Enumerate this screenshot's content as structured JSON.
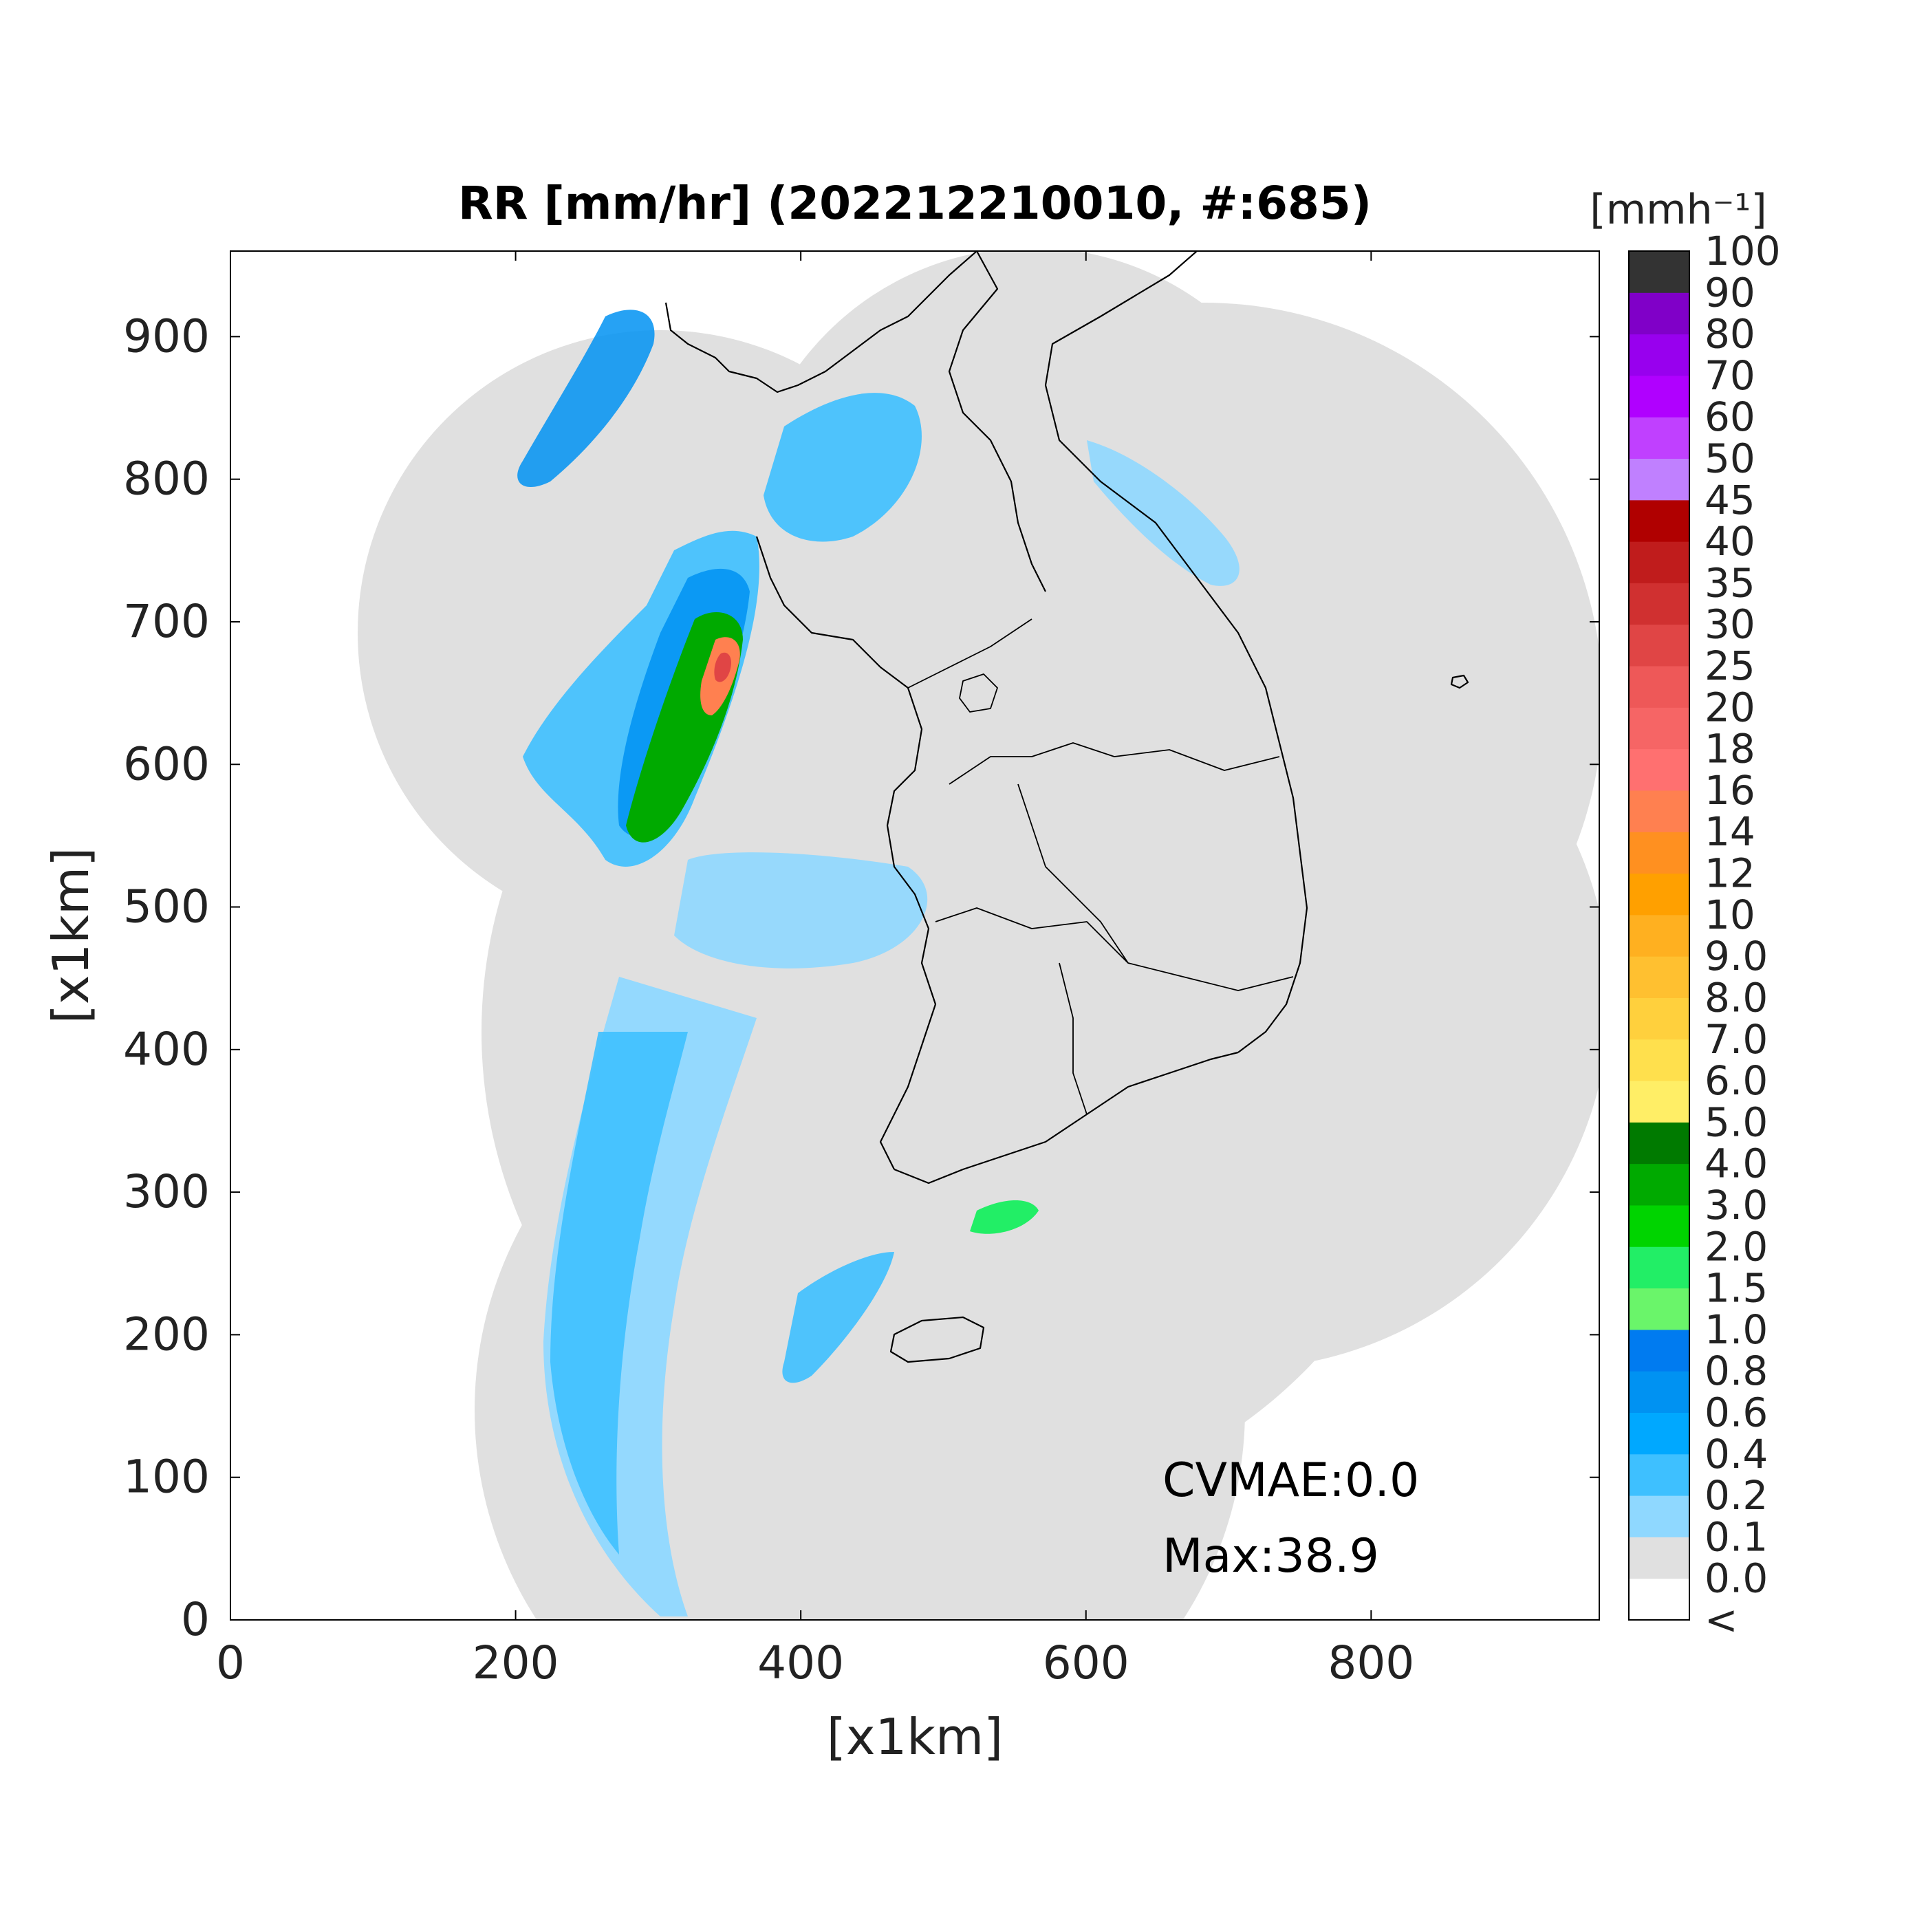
{
  "title": "RR [mm/hr] (202212210010, #:685)",
  "x_axis": {
    "label": "[x1km]",
    "min": 0,
    "max": 960,
    "ticks": [
      0,
      200,
      400,
      600,
      800
    ]
  },
  "y_axis": {
    "label": "[x1km]",
    "min": 0,
    "max": 960,
    "ticks": [
      0,
      100,
      200,
      300,
      400,
      500,
      600,
      700,
      800,
      900
    ]
  },
  "annotations": {
    "cvmae": "CVMAE:0.0",
    "max": "Max:38.9"
  },
  "colorbar": {
    "unit": "[mmh⁻¹]",
    "labels": [
      "<",
      "0.0",
      "0.1",
      "0.2",
      "0.4",
      "0.6",
      "0.8",
      "1.0",
      "1.5",
      "2.0",
      "3.0",
      "4.0",
      "5.0",
      "6.0",
      "7.0",
      "8.0",
      "9.0",
      "10",
      "12",
      "14",
      "16",
      "18",
      "20",
      "25",
      "30",
      "35",
      "40",
      "45",
      "50",
      "60",
      "70",
      "80",
      "90",
      "100"
    ],
    "colors": [
      "#ffffff",
      "#e0e0e0",
      "#8fd8ff",
      "#3ec0ff",
      "#00a8ff",
      "#0092f2",
      "#007bf0",
      "#6af56a",
      "#22ee66",
      "#00d400",
      "#00aa00",
      "#007a00",
      "#ffee66",
      "#ffe04d",
      "#ffd03d",
      "#ffc030",
      "#ffb020",
      "#ffa000",
      "#ff9020",
      "#ff8050",
      "#ff7070",
      "#f66565",
      "#ee5858",
      "#e04545",
      "#d03030",
      "#c01c1c",
      "#b00000",
      "#c080ff",
      "#c040ff",
      "#b000ff",
      "#9800ee",
      "#8000c8",
      "#333333"
    ]
  },
  "map_colors": {
    "coverage": "#e0e0e0",
    "outline": "#000000",
    "background": "#ffffff"
  }
}
